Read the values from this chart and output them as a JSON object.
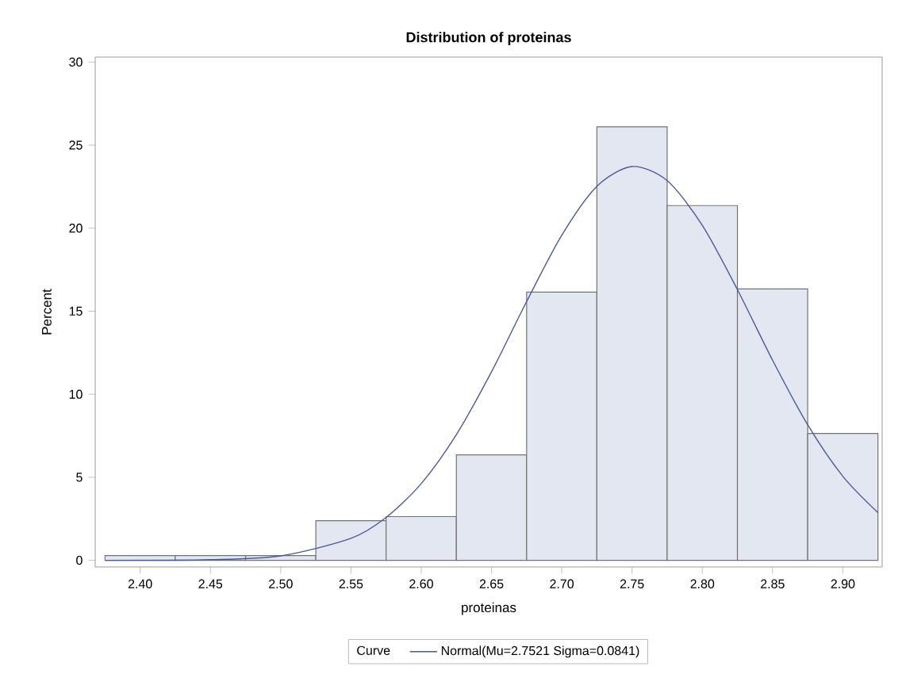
{
  "chart_data": {
    "type": "histogram",
    "title": "Distribution of proteinas",
    "xlabel": "proteinas",
    "ylabel": "Percent",
    "legend_title": "Curve",
    "bins": [
      2.375,
      2.425,
      2.475,
      2.525,
      2.575,
      2.625,
      2.675,
      2.725,
      2.775,
      2.825,
      2.875,
      2.925
    ],
    "values": [
      0.29,
      0.29,
      0.29,
      2.39,
      2.63,
      6.35,
      16.15,
      26.1,
      21.36,
      16.34,
      7.64
    ],
    "color": "#e3e7f1",
    "series": [
      {
        "type": "line",
        "name": "Normal(Mu=2.7521 Sigma=0.0841)",
        "color": "#4a5a9c",
        "x": [
          2.375,
          2.45,
          2.5,
          2.55,
          2.575,
          2.6,
          2.625,
          2.65,
          2.675,
          2.7,
          2.725,
          2.75,
          2.775,
          2.8,
          2.825,
          2.85,
          2.875,
          2.9,
          2.925
        ],
        "values": [
          0.0,
          0.04,
          0.27,
          1.32,
          2.58,
          4.62,
          7.57,
          11.35,
          15.58,
          19.57,
          22.52,
          23.71,
          22.86,
          20.17,
          16.3,
          12.05,
          8.16,
          5.06,
          2.87
        ]
      }
    ],
    "xlim": [
      2.368,
      2.928
    ],
    "ylim": [
      -0.4,
      30.3
    ],
    "xticks": [
      {
        "value": 2.4,
        "label": "2.40"
      },
      2.45,
      {
        "value": 2.5,
        "label": "2.50"
      },
      2.55,
      {
        "value": 2.6,
        "label": "2.60"
      },
      2.65,
      {
        "value": 2.7,
        "label": "2.70"
      },
      2.75,
      {
        "value": 2.8,
        "label": "2.80"
      },
      2.85,
      {
        "value": 2.9,
        "label": "2.90"
      }
    ],
    "yticks": [
      0,
      5,
      10,
      15,
      20,
      25,
      30
    ],
    "legend": "bottom"
  }
}
